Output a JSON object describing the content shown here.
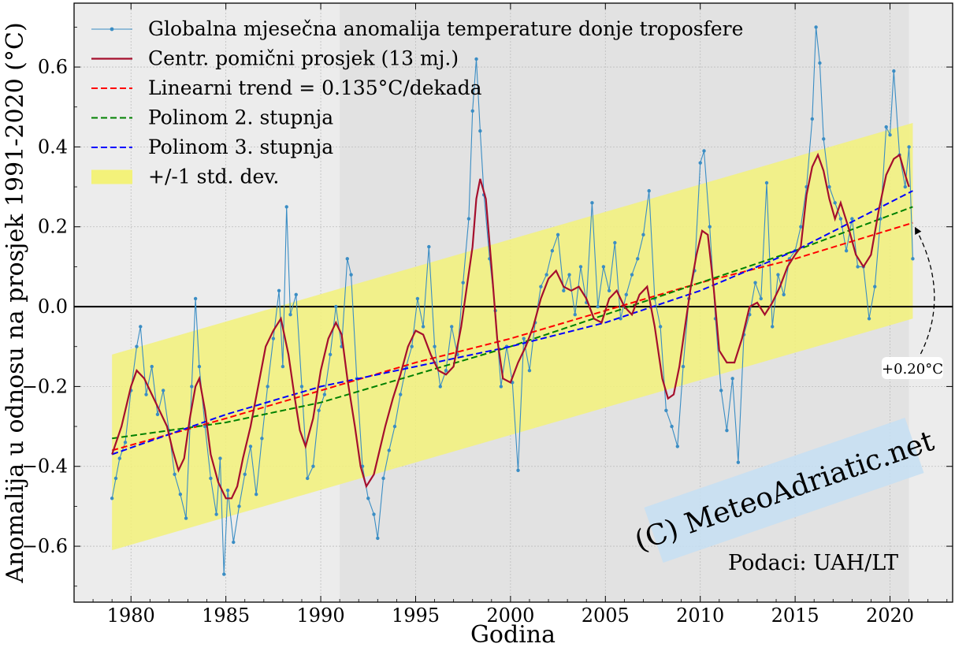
{
  "chart_data": {
    "type": "line",
    "xlabel": "Godina",
    "ylabel": "Anomalija u odnosu na prosjek 1991-2020 (°C)",
    "xlim": [
      1977,
      2023.3
    ],
    "ylim": [
      -0.74,
      0.76
    ],
    "x_ticks": [
      1980,
      1985,
      1990,
      1995,
      2000,
      2005,
      2010,
      2015,
      2020
    ],
    "y_ticks": [
      -0.6,
      -0.4,
      -0.2,
      0.0,
      0.2,
      0.4,
      0.6
    ],
    "x_tick_labels": [
      "1980",
      "1985",
      "1990",
      "1995",
      "2000",
      "2005",
      "2010",
      "2015",
      "2020"
    ],
    "y_tick_labels": [
      "−0.6",
      "−0.4",
      "−0.2",
      "0.0",
      "0.2",
      "0.4",
      "0.6"
    ],
    "grid": true,
    "legend_placement": "top-left",
    "reference_period_shading": [
      1991,
      2021
    ],
    "legend": [
      {
        "label": "Globalna mjesečna anomalija temperature donje troposfere",
        "color": "#3a8dc4",
        "style": "line-marker"
      },
      {
        "label": "Centr. pomični prosjek (13 mj.)",
        "color": "#a50f2d",
        "style": "solid"
      },
      {
        "label": "Linearni trend = 0.135°C/dekada",
        "color": "#ff0000",
        "style": "dashed"
      },
      {
        "label": "Polinom 2. stupnja",
        "color": "#008000",
        "style": "dashed"
      },
      {
        "label": "Polinom 3. stupnja",
        "color": "#0000ff",
        "style": "dashed"
      },
      {
        "label": "+/-1 std. dev.",
        "color": "#f3f27a",
        "style": "band"
      }
    ],
    "series": [
      {
        "name": "Globalna mjesečna anomalija temperature donje troposfere",
        "x": [
          1979.0,
          1979.2,
          1979.4,
          1979.7,
          1980.0,
          1980.3,
          1980.5,
          1980.8,
          1981.1,
          1981.4,
          1981.7,
          1982.0,
          1982.3,
          1982.6,
          1982.9,
          1983.2,
          1983.4,
          1983.6,
          1983.9,
          1984.2,
          1984.5,
          1984.7,
          1984.9,
          1985.1,
          1985.4,
          1985.7,
          1986.0,
          1986.3,
          1986.6,
          1986.9,
          1987.2,
          1987.5,
          1987.8,
          1988.0,
          1988.2,
          1988.4,
          1988.7,
          1989.0,
          1989.3,
          1989.6,
          1989.9,
          1990.2,
          1990.5,
          1990.8,
          1991.1,
          1991.4,
          1991.6,
          1991.9,
          1992.2,
          1992.5,
          1992.8,
          1993.0,
          1993.3,
          1993.6,
          1993.9,
          1994.2,
          1994.5,
          1994.8,
          1995.1,
          1995.4,
          1995.7,
          1996.0,
          1996.3,
          1996.6,
          1996.9,
          1997.2,
          1997.5,
          1997.8,
          1998.0,
          1998.2,
          1998.4,
          1998.6,
          1998.9,
          1999.2,
          1999.5,
          1999.8,
          2000.1,
          2000.4,
          2000.7,
          2001.0,
          2001.3,
          2001.6,
          2001.9,
          2002.2,
          2002.5,
          2002.8,
          2003.1,
          2003.4,
          2003.7,
          2004.0,
          2004.3,
          2004.6,
          2004.9,
          2005.2,
          2005.5,
          2005.8,
          2006.1,
          2006.4,
          2006.7,
          2007.0,
          2007.3,
          2007.6,
          2007.9,
          2008.2,
          2008.5,
          2008.8,
          2009.1,
          2009.4,
          2009.7,
          2010.0,
          2010.2,
          2010.5,
          2010.8,
          2011.1,
          2011.4,
          2011.7,
          2012.0,
          2012.3,
          2012.6,
          2012.9,
          2013.2,
          2013.5,
          2013.8,
          2014.1,
          2014.4,
          2014.7,
          2015.0,
          2015.3,
          2015.6,
          2015.9,
          2016.1,
          2016.3,
          2016.5,
          2016.8,
          2017.1,
          2017.4,
          2017.7,
          2018.0,
          2018.3,
          2018.6,
          2018.9,
          2019.2,
          2019.5,
          2019.8,
          2020.0,
          2020.2,
          2020.5,
          2020.8,
          2021.0,
          2021.2
        ],
        "y": [
          -0.48,
          -0.43,
          -0.38,
          -0.34,
          -0.21,
          -0.1,
          -0.05,
          -0.22,
          -0.15,
          -0.27,
          -0.21,
          -0.31,
          -0.42,
          -0.47,
          -0.53,
          -0.2,
          0.02,
          -0.15,
          -0.3,
          -0.43,
          -0.52,
          -0.38,
          -0.67,
          -0.46,
          -0.59,
          -0.5,
          -0.42,
          -0.35,
          -0.47,
          -0.33,
          -0.2,
          -0.08,
          0.04,
          -0.15,
          0.25,
          -0.02,
          0.03,
          -0.2,
          -0.43,
          -0.4,
          -0.26,
          -0.22,
          -0.12,
          0.0,
          -0.1,
          0.12,
          0.08,
          -0.18,
          -0.4,
          -0.48,
          -0.52,
          -0.58,
          -0.43,
          -0.36,
          -0.3,
          -0.22,
          -0.15,
          -0.1,
          0.02,
          -0.05,
          0.15,
          -0.1,
          -0.2,
          -0.16,
          -0.05,
          -0.12,
          0.06,
          0.22,
          0.49,
          0.62,
          0.44,
          0.28,
          0.12,
          -0.01,
          -0.2,
          -0.1,
          -0.19,
          -0.41,
          -0.08,
          -0.16,
          -0.04,
          0.05,
          0.08,
          0.14,
          0.18,
          0.04,
          0.08,
          -0.02,
          0.1,
          0.01,
          0.26,
          0.0,
          0.1,
          0.04,
          0.16,
          -0.03,
          0.03,
          0.08,
          0.12,
          0.18,
          0.29,
          0.02,
          -0.05,
          -0.26,
          -0.3,
          -0.35,
          -0.15,
          0.02,
          0.09,
          0.36,
          0.39,
          0.2,
          -0.03,
          -0.21,
          -0.31,
          -0.18,
          -0.39,
          -0.07,
          -0.02,
          0.06,
          0.02,
          0.31,
          -0.05,
          0.08,
          0.03,
          0.12,
          0.14,
          0.2,
          0.3,
          0.47,
          0.7,
          0.61,
          0.42,
          0.3,
          0.26,
          0.22,
          0.14,
          0.22,
          0.1,
          0.1,
          -0.03,
          0.05,
          0.22,
          0.45,
          0.43,
          0.59,
          0.38,
          0.3,
          0.4,
          0.12
        ],
        "color": "#3a8dc4"
      },
      {
        "name": "Centr. pomični prosjek (13 mj.)",
        "x": [
          1979.0,
          1979.5,
          1980.0,
          1980.3,
          1980.7,
          1981.1,
          1981.5,
          1981.9,
          1982.2,
          1982.5,
          1982.8,
          1983.1,
          1983.4,
          1983.6,
          1983.9,
          1984.2,
          1984.6,
          1985.0,
          1985.3,
          1985.6,
          1985.9,
          1986.3,
          1986.7,
          1987.1,
          1987.5,
          1987.9,
          1988.3,
          1988.6,
          1988.9,
          1989.2,
          1989.6,
          1990.0,
          1990.4,
          1990.8,
          1991.1,
          1991.4,
          1991.8,
          1992.1,
          1992.4,
          1992.8,
          1993.1,
          1993.4,
          1993.8,
          1994.2,
          1994.6,
          1995.0,
          1995.4,
          1995.8,
          1996.2,
          1996.6,
          1997.0,
          1997.4,
          1997.7,
          1998.0,
          1998.2,
          1998.4,
          1998.7,
          1999.0,
          1999.3,
          1999.6,
          2000.0,
          2000.4,
          2000.8,
          2001.2,
          2001.6,
          2002.0,
          2002.4,
          2002.8,
          2003.2,
          2003.6,
          2004.0,
          2004.4,
          2004.8,
          2005.2,
          2005.6,
          2006.0,
          2006.4,
          2006.8,
          2007.2,
          2007.6,
          2008.0,
          2008.3,
          2008.6,
          2008.9,
          2009.2,
          2009.5,
          2009.8,
          2010.1,
          2010.4,
          2010.7,
          2011.0,
          2011.4,
          2011.8,
          2012.2,
          2012.6,
          2013.0,
          2013.4,
          2013.8,
          2014.2,
          2014.6,
          2015.0,
          2015.3,
          2015.6,
          2015.9,
          2016.2,
          2016.5,
          2016.8,
          2017.1,
          2017.4,
          2017.8,
          2018.2,
          2018.6,
          2019.0,
          2019.4,
          2019.8,
          2020.2,
          2020.5,
          2020.8,
          2021.0
        ],
        "y": [
          -0.37,
          -0.3,
          -0.2,
          -0.16,
          -0.18,
          -0.22,
          -0.26,
          -0.3,
          -0.36,
          -0.41,
          -0.38,
          -0.28,
          -0.2,
          -0.18,
          -0.26,
          -0.37,
          -0.44,
          -0.48,
          -0.48,
          -0.45,
          -0.38,
          -0.3,
          -0.2,
          -0.1,
          -0.06,
          -0.03,
          -0.12,
          -0.22,
          -0.31,
          -0.35,
          -0.28,
          -0.16,
          -0.08,
          -0.04,
          -0.07,
          -0.18,
          -0.3,
          -0.4,
          -0.45,
          -0.42,
          -0.36,
          -0.3,
          -0.23,
          -0.17,
          -0.1,
          -0.06,
          -0.07,
          -0.12,
          -0.16,
          -0.17,
          -0.15,
          -0.05,
          0.05,
          0.15,
          0.27,
          0.32,
          0.27,
          0.1,
          -0.08,
          -0.18,
          -0.19,
          -0.14,
          -0.1,
          -0.05,
          0.02,
          0.07,
          0.09,
          0.05,
          0.04,
          0.05,
          0.02,
          -0.03,
          -0.04,
          0.02,
          0.04,
          0.0,
          -0.02,
          0.03,
          0.05,
          -0.05,
          -0.18,
          -0.23,
          -0.22,
          -0.15,
          -0.05,
          0.05,
          0.13,
          0.19,
          0.18,
          0.05,
          -0.11,
          -0.14,
          -0.14,
          -0.08,
          0.0,
          0.01,
          -0.02,
          0.01,
          0.05,
          0.1,
          0.13,
          0.15,
          0.28,
          0.35,
          0.38,
          0.34,
          0.27,
          0.22,
          0.26,
          0.2,
          0.13,
          0.1,
          0.13,
          0.24,
          0.33,
          0.37,
          0.38,
          0.33,
          0.3
        ],
        "color": "#a50f2d"
      }
    ],
    "trends": [
      {
        "name": "Linearni trend = 0.135°C/dekada",
        "x": [
          1979.0,
          1985.0,
          1990.0,
          1995.0,
          2000.0,
          2005.0,
          2010.0,
          2015.0,
          2021.2
        ],
        "y": [
          -0.36,
          -0.28,
          -0.21,
          -0.14,
          -0.08,
          -0.01,
          0.06,
          0.12,
          0.21
        ],
        "color": "#ff0000"
      },
      {
        "name": "Polinom 2. stupnja",
        "x": [
          1979.0,
          1985.0,
          1990.0,
          1995.0,
          2000.0,
          2005.0,
          2010.0,
          2015.0,
          2021.2
        ],
        "y": [
          -0.33,
          -0.29,
          -0.24,
          -0.17,
          -0.1,
          -0.02,
          0.06,
          0.14,
          0.25
        ],
        "color": "#008000"
      },
      {
        "name": "Polinom 3. stupnja",
        "x": [
          1979.0,
          1985.0,
          1990.0,
          1995.0,
          2000.0,
          2005.0,
          2010.0,
          2015.0,
          2021.2
        ],
        "y": [
          -0.37,
          -0.27,
          -0.2,
          -0.15,
          -0.1,
          -0.04,
          0.04,
          0.14,
          0.29
        ],
        "color": "#0000ff"
      }
    ],
    "std_band": {
      "name": "+/-1 std. dev.",
      "x": [
        1979.0,
        2021.2
      ],
      "upper": [
        -0.12,
        0.46
      ],
      "lower": [
        -0.61,
        -0.03
      ],
      "color": "#f3f27a"
    },
    "annotations": {
      "trend_change": "+0.20°C",
      "watermark": "(C) MeteoAdriatic.net",
      "source": "Podaci: UAH/LT"
    }
  }
}
